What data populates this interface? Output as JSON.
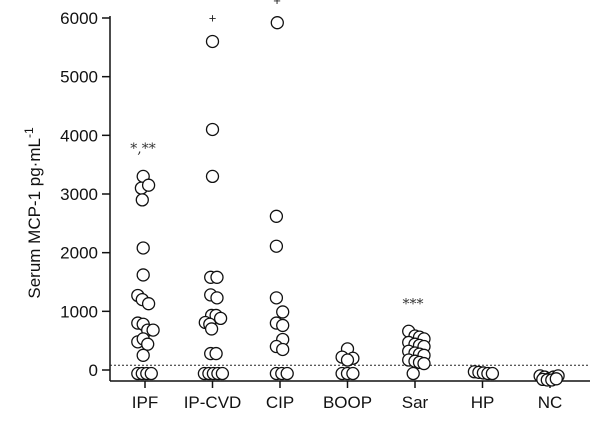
{
  "chart_data": {
    "type": "scatter",
    "ylabel": "Serum MCP-1 pg·mL",
    "ylabel_superscript": "-1",
    "ylim": [
      -150,
      6000
    ],
    "yticks": [
      0,
      1000,
      2000,
      3000,
      4000,
      5000,
      6000
    ],
    "ytick_labels": [
      "0",
      "1000",
      "2000",
      "3000",
      "4000",
      "5000",
      "6000"
    ],
    "categories": [
      "IPF",
      "IP-CVD",
      "CIP",
      "BOOP",
      "Sar",
      "HP",
      "NC"
    ],
    "detection_limit": 80,
    "groups": [
      {
        "name": "IPF",
        "annotation": "*,**",
        "annotation_y": 3700,
        "points": [
          {
            "y": 3300,
            "j": -0.2
          },
          {
            "y": 3100,
            "j": -0.4
          },
          {
            "y": 3150,
            "j": 0.4
          },
          {
            "y": 2900,
            "j": -0.3
          },
          {
            "y": 2080,
            "j": -0.2
          },
          {
            "y": 1620,
            "j": -0.2
          },
          {
            "y": 1270,
            "j": -0.8
          },
          {
            "y": 1200,
            "j": -0.3
          },
          {
            "y": 1130,
            "j": 0.4
          },
          {
            "y": 800,
            "j": -0.8
          },
          {
            "y": 780,
            "j": -0.2
          },
          {
            "y": 680,
            "j": 0.3
          },
          {
            "y": 680,
            "j": 0.9
          },
          {
            "y": 480,
            "j": -0.8
          },
          {
            "y": 530,
            "j": -0.2
          },
          {
            "y": 440,
            "j": 0.3
          },
          {
            "y": 250,
            "j": -0.2
          },
          {
            "y": -60,
            "j": -0.8
          },
          {
            "y": -60,
            "j": -0.3
          },
          {
            "y": -60,
            "j": 0.2
          },
          {
            "y": -60,
            "j": 0.7
          }
        ]
      },
      {
        "name": "IP-CVD",
        "annotation": "+",
        "annotation_y": 5920,
        "points": [
          {
            "y": 5600,
            "j": 0
          },
          {
            "y": 4100,
            "j": 0
          },
          {
            "y": 3300,
            "j": 0
          },
          {
            "y": 1580,
            "j": -0.2
          },
          {
            "y": 1580,
            "j": 0.5
          },
          {
            "y": 1280,
            "j": -0.2
          },
          {
            "y": 1230,
            "j": 0.5
          },
          {
            "y": 930,
            "j": -0.1
          },
          {
            "y": 930,
            "j": 0.4
          },
          {
            "y": 880,
            "j": 0.9
          },
          {
            "y": 810,
            "j": -0.8
          },
          {
            "y": 780,
            "j": -0.3
          },
          {
            "y": 700,
            "j": -0.1
          },
          {
            "y": 280,
            "j": -0.2
          },
          {
            "y": 280,
            "j": 0.4
          },
          {
            "y": -60,
            "j": -0.9
          },
          {
            "y": -60,
            "j": -0.4
          },
          {
            "y": -60,
            "j": 0.1
          },
          {
            "y": -60,
            "j": 0.6
          },
          {
            "y": -60,
            "j": 1.1
          }
        ]
      },
      {
        "name": "CIP",
        "annotation": "+",
        "annotation_y": 6220,
        "points": [
          {
            "y": 5920,
            "j": -0.3
          },
          {
            "y": 2620,
            "j": -0.4
          },
          {
            "y": 2110,
            "j": -0.4
          },
          {
            "y": 1230,
            "j": -0.4
          },
          {
            "y": 990,
            "j": 0.3
          },
          {
            "y": 800,
            "j": -0.4
          },
          {
            "y": 760,
            "j": 0.3
          },
          {
            "y": 520,
            "j": 0.3
          },
          {
            "y": 400,
            "j": -0.4
          },
          {
            "y": 350,
            "j": 0.3
          },
          {
            "y": -60,
            "j": -0.4
          },
          {
            "y": -60,
            "j": 0.2
          },
          {
            "y": -60,
            "j": 0.8
          }
        ]
      },
      {
        "name": "BOOP",
        "annotation": "",
        "annotation_y": 0,
        "points": [
          {
            "y": 360,
            "j": 0
          },
          {
            "y": 220,
            "j": -0.6
          },
          {
            "y": 200,
            "j": 0.6
          },
          {
            "y": 170,
            "j": 0
          },
          {
            "y": -60,
            "j": -0.6
          },
          {
            "y": -60,
            "j": 0
          },
          {
            "y": -60,
            "j": 0.6
          }
        ]
      },
      {
        "name": "Sar",
        "annotation": "***",
        "annotation_y": 1050,
        "points": [
          {
            "y": 660,
            "j": -0.7
          },
          {
            "y": 580,
            "j": 0
          },
          {
            "y": 560,
            "j": 0.5
          },
          {
            "y": 530,
            "j": 1.0
          },
          {
            "y": 470,
            "j": -0.7
          },
          {
            "y": 440,
            "j": 0
          },
          {
            "y": 420,
            "j": 0.5
          },
          {
            "y": 400,
            "j": 1.0
          },
          {
            "y": 320,
            "j": -0.7
          },
          {
            "y": 290,
            "j": 0
          },
          {
            "y": 270,
            "j": 0.5
          },
          {
            "y": 250,
            "j": 1.0
          },
          {
            "y": 170,
            "j": -0.7
          },
          {
            "y": 150,
            "j": 0
          },
          {
            "y": 130,
            "j": 0.5
          },
          {
            "y": 110,
            "j": 1.0
          },
          {
            "y": -60,
            "j": -0.2
          }
        ]
      },
      {
        "name": "HP",
        "annotation": "",
        "annotation_y": 0,
        "points": [
          {
            "y": -30,
            "j": -0.9
          },
          {
            "y": -40,
            "j": -0.4
          },
          {
            "y": -50,
            "j": 0.1
          },
          {
            "y": -60,
            "j": 0.6
          },
          {
            "y": -60,
            "j": 1.1
          }
        ]
      },
      {
        "name": "NC",
        "annotation": "",
        "annotation_y": 0,
        "points": [
          {
            "y": -100,
            "j": -1.1
          },
          {
            "y": -120,
            "j": -0.6
          },
          {
            "y": -150,
            "j": -0.1
          },
          {
            "y": -120,
            "j": 0.4
          },
          {
            "y": -100,
            "j": 0.9
          },
          {
            "y": -160,
            "j": -0.8
          },
          {
            "y": -170,
            "j": -0.3
          },
          {
            "y": -170,
            "j": 0.2
          },
          {
            "y": -150,
            "j": 0.7
          }
        ]
      }
    ]
  }
}
